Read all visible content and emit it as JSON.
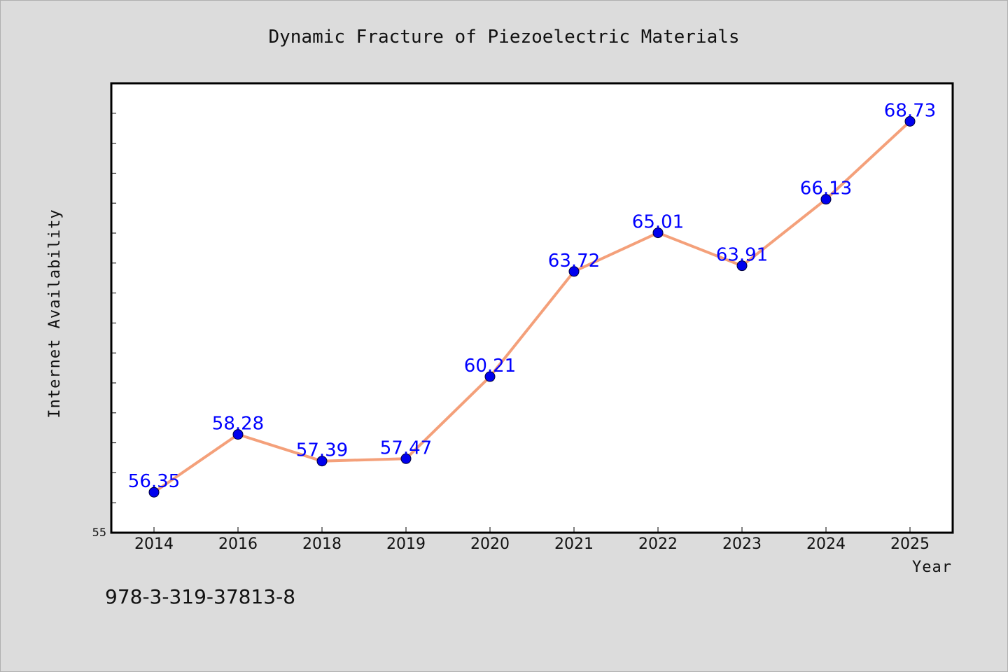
{
  "chart_data": {
    "type": "line",
    "title": "Dynamic Fracture of Piezoelectric Materials",
    "xlabel": "Year",
    "ylabel": "Internet Availability",
    "categories": [
      "2014",
      "2016",
      "2018",
      "2019",
      "2020",
      "2021",
      "2022",
      "2023",
      "2024",
      "2025"
    ],
    "series": [
      {
        "values": [
          56.35,
          58.28,
          57.39,
          57.47,
          60.21,
          63.72,
          65.01,
          63.91,
          66.13,
          68.73
        ]
      }
    ],
    "value_labels": [
      "56.35",
      "58.28",
      "57.39",
      "57.47",
      "60.21",
      "63.72",
      "65.01",
      "63.91",
      "66.13",
      "68.73"
    ],
    "ylim": [
      55,
      70
    ],
    "y_tick_labels": [
      "55"
    ],
    "grid": false,
    "line_color": "#f4a07a",
    "marker_color": "#0000ee",
    "label_color": "#0000ff"
  },
  "footer": {
    "isbn": "978-3-319-37813-8"
  }
}
